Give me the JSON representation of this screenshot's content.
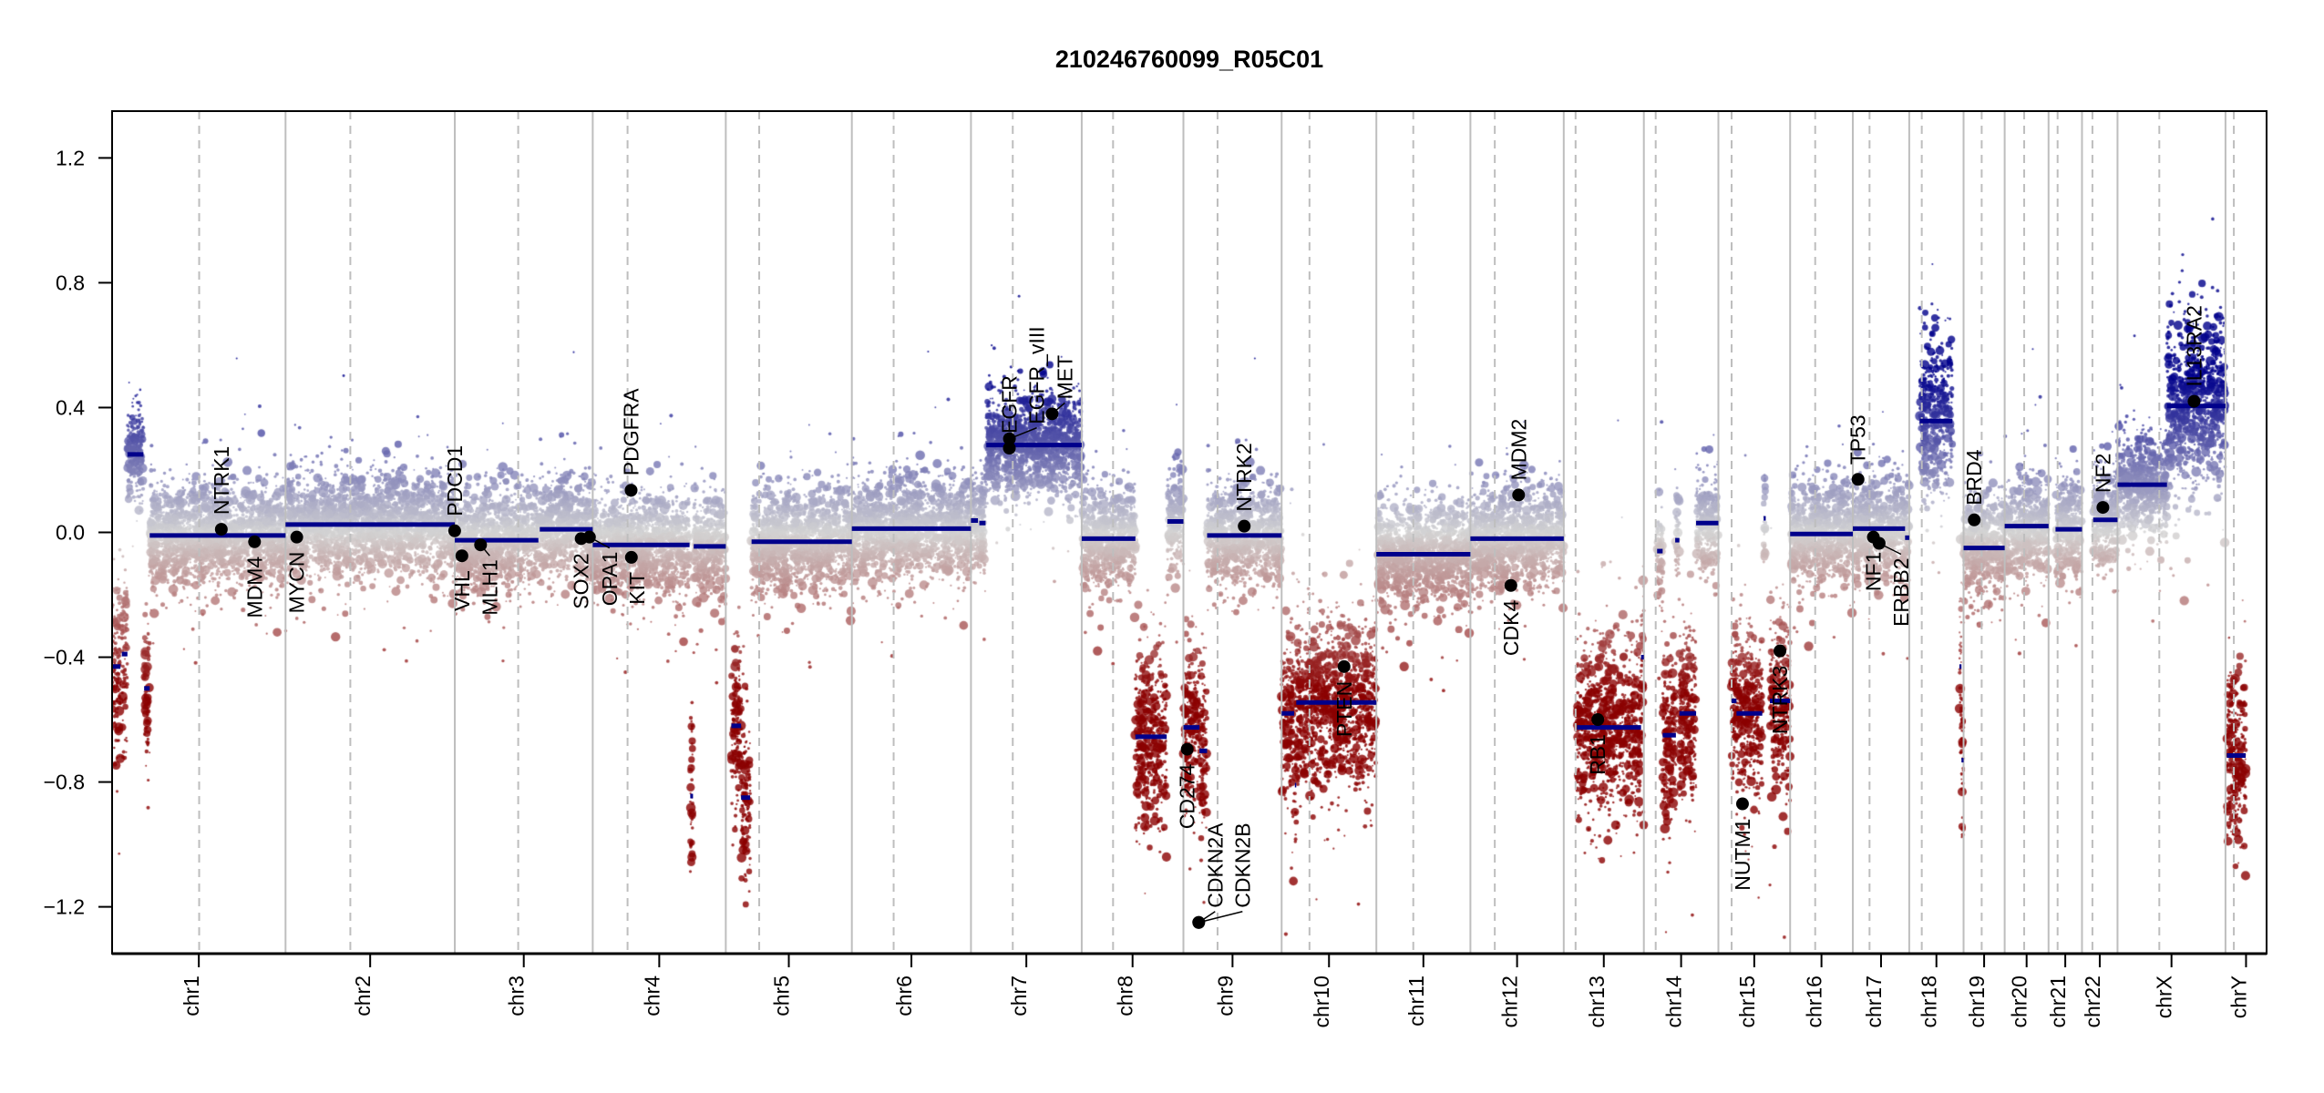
{
  "chart_data": {
    "type": "scatter",
    "title": "210246760099_R05C01",
    "xlabel": "",
    "ylabel": "",
    "ylim": [
      -1.35,
      1.35
    ],
    "yticks": [
      1.2,
      0.8,
      0.4,
      0.0,
      -0.4,
      -0.8,
      -1.2
    ],
    "ytick_labels": [
      "1.2",
      "0.8",
      "0.4",
      "0.0",
      "−0.4",
      "−0.8",
      "−1.2"
    ],
    "chromosomes": [
      "chr1",
      "chr2",
      "chr3",
      "chr4",
      "chr5",
      "chr6",
      "chr7",
      "chr8",
      "chr9",
      "chr10",
      "chr11",
      "chr12",
      "chr13",
      "chr14",
      "chr15",
      "chr16",
      "chr17",
      "chr18",
      "chr19",
      "chr20",
      "chr21",
      "chr22",
      "chrX",
      "chrY"
    ],
    "grid": "chromosome boundaries solid, centromeres dashed",
    "colors": {
      "gain": "#00008B",
      "neutral": "#D3D3D3",
      "loss": "#8B0000",
      "segment": "#00008B",
      "boundary": "#BEBEBE",
      "gene": "#000000"
    },
    "segments": [
      {
        "chr": "chr1",
        "start": 0,
        "end": 12,
        "value": -0.43
      },
      {
        "chr": "chr1",
        "start": 14,
        "end": 22,
        "value": -0.39
      },
      {
        "chr": "chr1",
        "start": 22,
        "end": 45,
        "value": 0.25
      },
      {
        "chr": "chr1",
        "start": 46,
        "end": 54,
        "value": -0.5
      },
      {
        "chr": "chr1",
        "start": 54,
        "end": 249,
        "value": -0.01
      },
      {
        "chr": "chr2",
        "start": 0,
        "end": 243,
        "value": 0.025
      },
      {
        "chr": "chr3",
        "start": 0,
        "end": 120,
        "value": -0.025
      },
      {
        "chr": "chr3",
        "start": 122,
        "end": 198,
        "value": 0.01
      },
      {
        "chr": "chr4",
        "start": 0,
        "end": 139,
        "value": -0.04
      },
      {
        "chr": "chr4",
        "start": 140,
        "end": 144,
        "value": -0.845
      },
      {
        "chr": "chr4",
        "start": 145,
        "end": 191,
        "value": -0.045
      },
      {
        "chr": "chr5",
        "start": 8,
        "end": 22,
        "value": -0.62
      },
      {
        "chr": "chr5",
        "start": 22,
        "end": 35,
        "value": -0.85
      },
      {
        "chr": "chr5",
        "start": 37,
        "end": 181,
        "value": -0.03
      },
      {
        "chr": "chr6",
        "start": 0,
        "end": 171,
        "value": 0.012
      },
      {
        "chr": "chr7",
        "start": 0,
        "end": 10,
        "value": 0.038
      },
      {
        "chr": "chr7",
        "start": 12,
        "end": 21,
        "value": 0.03
      },
      {
        "chr": "chr7",
        "start": 22,
        "end": 159,
        "value": 0.28
      },
      {
        "chr": "chr8",
        "start": 0,
        "end": 77,
        "value": -0.02
      },
      {
        "chr": "chr8",
        "start": 77,
        "end": 122,
        "value": -0.655
      },
      {
        "chr": "chr8",
        "start": 123,
        "end": 146,
        "value": 0.035
      },
      {
        "chr": "chr9",
        "start": 0,
        "end": 23,
        "value": -0.625
      },
      {
        "chr": "chr9",
        "start": 23,
        "end": 34,
        "value": -0.7
      },
      {
        "chr": "chr9",
        "start": 34,
        "end": 141,
        "value": -0.01
      },
      {
        "chr": "chr10",
        "start": 0,
        "end": 18,
        "value": -0.58
      },
      {
        "chr": "chr10",
        "start": 19,
        "end": 21,
        "value": -0.81
      },
      {
        "chr": "chr10",
        "start": 21,
        "end": 136,
        "value": -0.545
      },
      {
        "chr": "chr11",
        "start": 0,
        "end": 135,
        "value": -0.07
      },
      {
        "chr": "chr12",
        "start": 0,
        "end": 134,
        "value": -0.02
      },
      {
        "chr": "chr13",
        "start": 19,
        "end": 111,
        "value": -0.625
      },
      {
        "chr": "chr13",
        "start": 111,
        "end": 115,
        "value": -0.4
      },
      {
        "chr": "chr14",
        "start": 19,
        "end": 27,
        "value": -0.06
      },
      {
        "chr": "chr14",
        "start": 27,
        "end": 46,
        "value": -0.65
      },
      {
        "chr": "chr14",
        "start": 45,
        "end": 51,
        "value": -0.025
      },
      {
        "chr": "chr14",
        "start": 51,
        "end": 75,
        "value": -0.58
      },
      {
        "chr": "chr14",
        "start": 75,
        "end": 107,
        "value": 0.03
      },
      {
        "chr": "chr15",
        "start": 19,
        "end": 26,
        "value": -0.54
      },
      {
        "chr": "chr15",
        "start": 26,
        "end": 63,
        "value": -0.58
      },
      {
        "chr": "chr15",
        "start": 65,
        "end": 68,
        "value": 0.045
      },
      {
        "chr": "chr15",
        "start": 74,
        "end": 103,
        "value": -0.54
      },
      {
        "chr": "chr16",
        "start": 0,
        "end": 90,
        "value": -0.005
      },
      {
        "chr": "chr17",
        "start": 0,
        "end": 75,
        "value": 0.012
      },
      {
        "chr": "chr17",
        "start": 75,
        "end": 81,
        "value": -0.017
      },
      {
        "chr": "chr18",
        "start": 15,
        "end": 62,
        "value": 0.357
      },
      {
        "chr": "chr18",
        "start": 72,
        "end": 75,
        "value": -0.43
      },
      {
        "chr": "chr18",
        "start": 75,
        "end": 78,
        "value": -0.73
      },
      {
        "chr": "chr19",
        "start": 0,
        "end": 59,
        "value": -0.05
      },
      {
        "chr": "chr20",
        "start": 0,
        "end": 63,
        "value": 0.02
      },
      {
        "chr": "chr21",
        "start": 10,
        "end": 48,
        "value": 0.01
      },
      {
        "chr": "chr22",
        "start": 16,
        "end": 51,
        "value": 0.04
      },
      {
        "chr": "chrX",
        "start": 0,
        "end": 71,
        "value": 0.153
      },
      {
        "chr": "chrX",
        "start": 71,
        "end": 155,
        "value": 0.405
      },
      {
        "chr": "chrY",
        "start": 2,
        "end": 29,
        "value": -0.715
      }
    ],
    "genes": [
      {
        "name": "NTRK1",
        "chr": "chr1",
        "pos": 156.8,
        "value": 0.01
      },
      {
        "name": "MDM4",
        "chr": "chr1",
        "pos": 204.5,
        "value": -0.03
      },
      {
        "name": "MYCN",
        "chr": "chr2",
        "pos": 16.1,
        "value": -0.015
      },
      {
        "name": "PDCD1",
        "chr": "chr2",
        "pos": 242.8,
        "value": 0.005
      },
      {
        "name": "VHL",
        "chr": "chr3",
        "pos": 10.2,
        "value": -0.075
      },
      {
        "name": "MLH1",
        "chr": "chr3",
        "pos": 37.0,
        "value": -0.04
      },
      {
        "name": "SOX2",
        "chr": "chr3",
        "pos": 181.4,
        "value": -0.02
      },
      {
        "name": "OPA1",
        "chr": "chr3",
        "pos": 193.3,
        "value": -0.015
      },
      {
        "name": "PDGFRA",
        "chr": "chr4",
        "pos": 55.1,
        "value": 0.135
      },
      {
        "name": "KIT",
        "chr": "chr4",
        "pos": 55.5,
        "value": -0.08
      },
      {
        "name": "EGFR",
        "chr": "chr7",
        "pos": 55.1,
        "value": 0.27
      },
      {
        "name": "EGFR_vIII",
        "chr": "chr7",
        "pos": 55.2,
        "value": 0.3
      },
      {
        "name": "MET",
        "chr": "chr7",
        "pos": 116.4,
        "value": 0.38
      },
      {
        "name": "CD274",
        "chr": "chr9",
        "pos": 5.45,
        "value": -0.695
      },
      {
        "name": "CDKN2A",
        "chr": "chr9",
        "pos": 21.97,
        "value": -1.25
      },
      {
        "name": "CDKN2B",
        "chr": "chr9",
        "pos": 22.0,
        "value": -1.25
      },
      {
        "name": "NTRK2",
        "chr": "chr9",
        "pos": 87.3,
        "value": 0.02
      },
      {
        "name": "PTEN",
        "chr": "chr10",
        "pos": 89.6,
        "value": -0.43
      },
      {
        "name": "CDK4",
        "chr": "chr12",
        "pos": 58.1,
        "value": -0.17
      },
      {
        "name": "MDM2",
        "chr": "chr12",
        "pos": 69.2,
        "value": 0.12
      },
      {
        "name": "RB1",
        "chr": "chr13",
        "pos": 48.9,
        "value": -0.6
      },
      {
        "name": "NUTM1",
        "chr": "chr15",
        "pos": 34.6,
        "value": -0.87
      },
      {
        "name": "NTRK3",
        "chr": "chr15",
        "pos": 88.4,
        "value": -0.38
      },
      {
        "name": "TP53",
        "chr": "chr17",
        "pos": 7.5,
        "value": 0.17
      },
      {
        "name": "NF1",
        "chr": "chr17",
        "pos": 29.5,
        "value": -0.015
      },
      {
        "name": "ERBB2",
        "chr": "chr17",
        "pos": 37.8,
        "value": -0.035
      },
      {
        "name": "BRD4",
        "chr": "chr19",
        "pos": 15.3,
        "value": 0.04
      },
      {
        "name": "NF2",
        "chr": "chr22",
        "pos": 30.0,
        "value": 0.08
      },
      {
        "name": "IL13RA2",
        "chr": "chrX",
        "pos": 109.9,
        "value": 0.42
      }
    ]
  }
}
